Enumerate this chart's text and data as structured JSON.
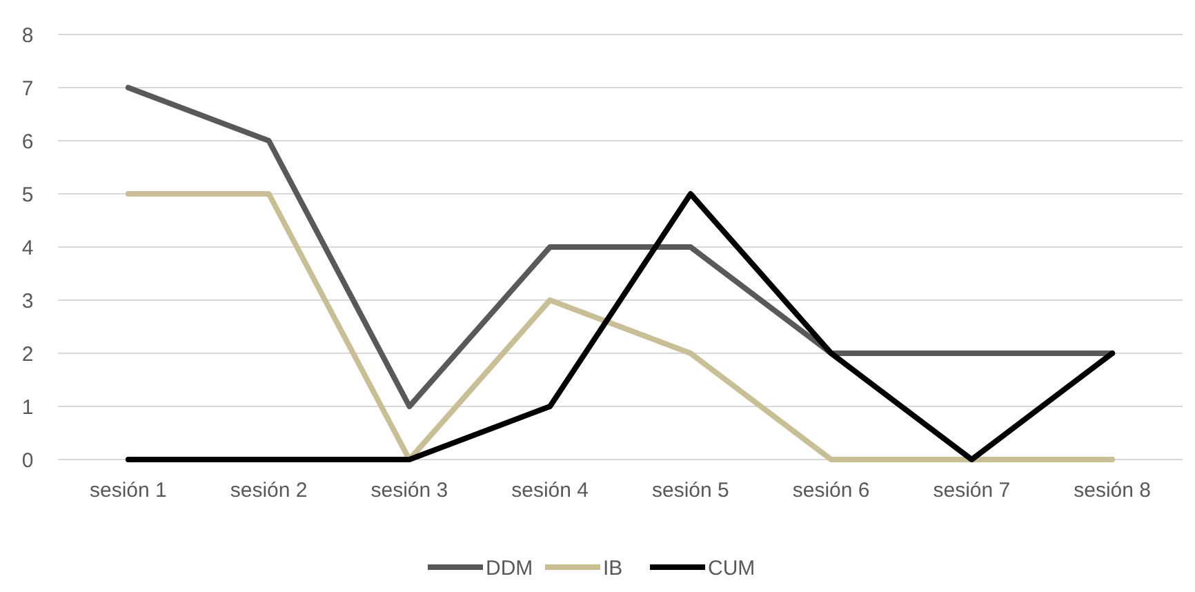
{
  "chart_data": {
    "type": "line",
    "categories": [
      "sesión 1",
      "sesión 2",
      "sesión 3",
      "sesión 4",
      "sesión 5",
      "sesión 6",
      "sesión 7",
      "sesión 8"
    ],
    "series": [
      {
        "name": "DDM",
        "color": "#595959",
        "values": [
          7,
          6,
          1,
          4,
          4,
          2,
          2,
          2
        ]
      },
      {
        "name": "IB",
        "color": "#c9bf94",
        "values": [
          5,
          5,
          0,
          3,
          2,
          0,
          0,
          0
        ]
      },
      {
        "name": "CUM",
        "color": "#000000",
        "values": [
          0,
          0,
          0,
          1,
          5,
          2,
          0,
          2
        ]
      }
    ],
    "ylim": [
      0,
      8
    ],
    "yticks": [
      0,
      1,
      2,
      3,
      4,
      5,
      6,
      7,
      8
    ],
    "grid": "y",
    "legend": "bottom",
    "marker": "none",
    "line_style": "solid"
  }
}
